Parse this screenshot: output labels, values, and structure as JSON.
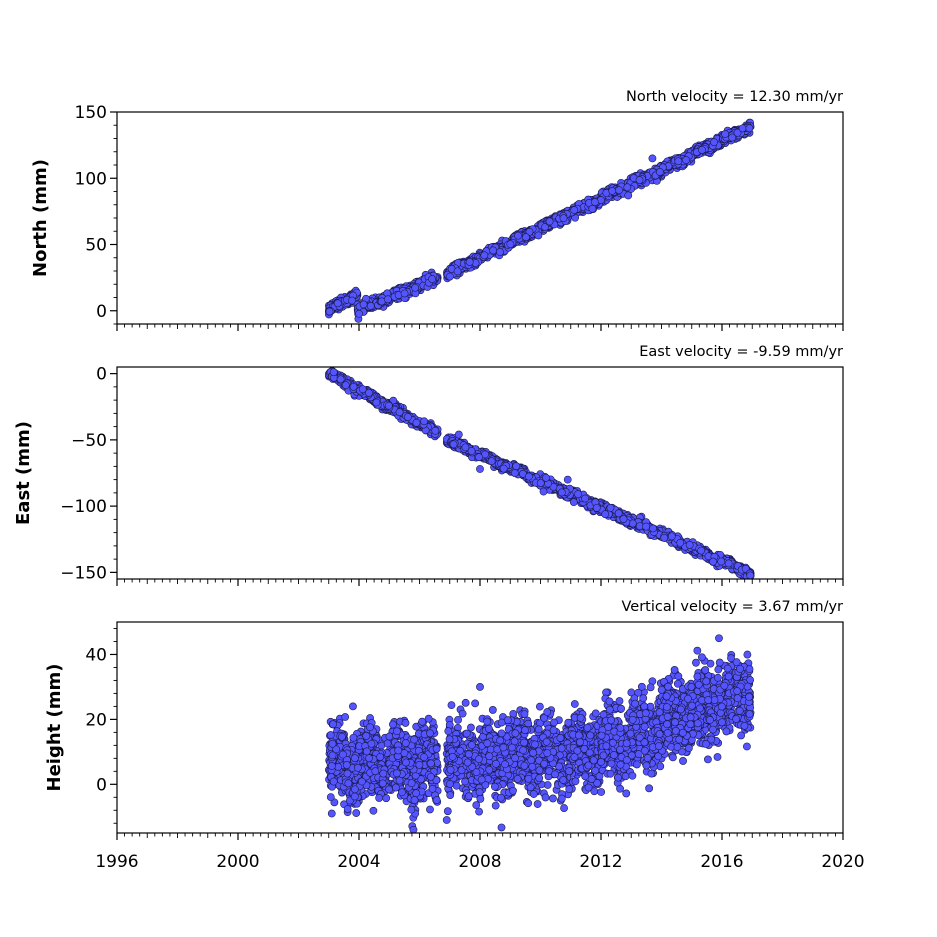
{
  "chart_data": [
    {
      "type": "scatter",
      "title": "North velocity = 12.30 mm/yr",
      "ylabel": "North (mm)",
      "xlim": [
        1996,
        2020
      ],
      "ylim": [
        -10,
        150
      ],
      "yticks": [
        0,
        50,
        100,
        150
      ],
      "yticklabels": [
        "0",
        "50",
        "100",
        "150"
      ],
      "marker_color": "#5555ff",
      "marker_edge": "#1a1a4a",
      "series": [
        {
          "segments": [
            {
              "x0": 2003.0,
              "x1": 2003.95,
              "y0": 0,
              "y1": 13,
              "noise": 1.8,
              "n": 180
            },
            {
              "x0": 2003.95,
              "x1": 2006.6,
              "y0": 0,
              "y1": 25,
              "noise": 1.8,
              "n": 420
            },
            {
              "x0": 2006.9,
              "x1": 2016.95,
              "y0": 28,
              "y1": 139,
              "noise": 1.8,
              "n": 1700
            }
          ]
        }
      ],
      "outliers": [
        {
          "x": 2013.7,
          "y": 115
        },
        {
          "x": 2012.9,
          "y": 87
        },
        {
          "x": 2011.8,
          "y": 82
        }
      ]
    },
    {
      "type": "scatter",
      "title": "East velocity = -9.59 mm/yr",
      "ylabel": "East (mm)",
      "xlim": [
        1996,
        2020
      ],
      "ylim": [
        -155,
        5
      ],
      "yticks": [
        -150,
        -100,
        -50,
        0
      ],
      "yticklabels": [
        "−150",
        "−100",
        "−50",
        "0"
      ],
      "marker_color": "#5555ff",
      "marker_edge": "#1a1a4a",
      "series": [
        {
          "segments": [
            {
              "x0": 2003.0,
              "x1": 2006.6,
              "y0": 0,
              "y1": -45,
              "noise": 1.6,
              "n": 600
            },
            {
              "x0": 2006.9,
              "x1": 2016.95,
              "y0": -50,
              "y1": -151,
              "noise": 1.6,
              "n": 1700
            }
          ]
        }
      ],
      "outliers": [
        {
          "x": 2008.0,
          "y": -72
        },
        {
          "x": 2010.1,
          "y": -89
        },
        {
          "x": 2010.9,
          "y": -80
        },
        {
          "x": 2011.1,
          "y": -97
        },
        {
          "x": 2007.3,
          "y": -46
        }
      ]
    },
    {
      "type": "scatter",
      "title": "Vertical velocity = 3.67 mm/yr",
      "ylabel": "Height (mm)",
      "xlim": [
        1996,
        2020
      ],
      "ylim": [
        -15,
        50
      ],
      "yticks": [
        0,
        20,
        40
      ],
      "yticklabels": [
        "0",
        "20",
        "40"
      ],
      "marker_color": "#5555ff",
      "marker_edge": "#1a1a4a",
      "series": [
        {
          "segments": [
            {
              "x0": 2003.0,
              "x1": 2006.6,
              "y0": 6,
              "y1": 6,
              "noise": 5.5,
              "n": 900
            },
            {
              "x0": 2006.9,
              "x1": 2012.0,
              "y0": 7,
              "y1": 10,
              "noise": 5.5,
              "n": 1200
            },
            {
              "x0": 2012.0,
              "x1": 2016.95,
              "y0": 10,
              "y1": 30,
              "noise": 5.5,
              "n": 1200
            }
          ]
        }
      ],
      "outliers": [
        {
          "x": 2005.8,
          "y": -14
        },
        {
          "x": 2008.0,
          "y": 30
        },
        {
          "x": 2015.9,
          "y": 45
        },
        {
          "x": 2003.1,
          "y": -9
        },
        {
          "x": 2006.9,
          "y": -11
        },
        {
          "x": 2003.8,
          "y": 24
        }
      ]
    }
  ],
  "xaxis": {
    "ticks": [
      1996,
      2000,
      2004,
      2008,
      2012,
      2016,
      2020
    ],
    "ticklabels": [
      "1996",
      "2000",
      "2004",
      "2008",
      "2012",
      "2016",
      "2020"
    ]
  }
}
